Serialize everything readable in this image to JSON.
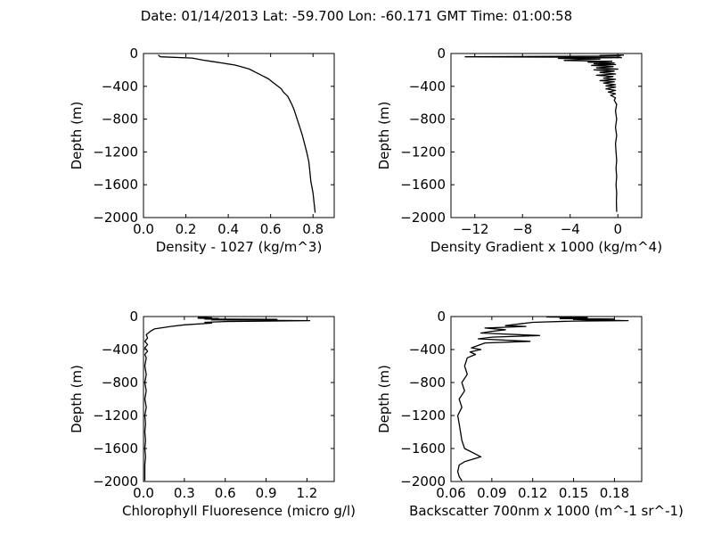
{
  "figure": {
    "title": "Date: 01/14/2013  Lat:  -59.700 Lon:  -60.171  GMT Time: 01:00:58"
  },
  "chart_data": [
    {
      "type": "line",
      "title": "",
      "xlabel": "Density - 1027 (kg/m^3)",
      "ylabel": "Depth (m)",
      "xlim": [
        0.0,
        0.9
      ],
      "ylim": [
        -2000,
        0
      ],
      "xticks": [
        0.0,
        0.2,
        0.4,
        0.6,
        0.8
      ],
      "xtick_labels": [
        "0.0",
        "0.2",
        "0.4",
        "0.6",
        "0.8"
      ],
      "yticks": [
        0,
        -400,
        -800,
        -1200,
        -1600,
        -2000
      ],
      "ytick_labels": [
        "0",
        "−400",
        "−800",
        "−1200",
        "−1600",
        "−2000"
      ],
      "grid": false,
      "series": [
        {
          "points": [
            [
              0.07,
              -20
            ],
            [
              0.08,
              -40
            ],
            [
              0.23,
              -55
            ],
            [
              0.28,
              -80
            ],
            [
              0.33,
              -100
            ],
            [
              0.38,
              -120
            ],
            [
              0.43,
              -140
            ],
            [
              0.46,
              -160
            ],
            [
              0.5,
              -190
            ],
            [
              0.53,
              -230
            ],
            [
              0.56,
              -270
            ],
            [
              0.59,
              -310
            ],
            [
              0.61,
              -350
            ],
            [
              0.63,
              -390
            ],
            [
              0.65,
              -430
            ],
            [
              0.66,
              -470
            ],
            [
              0.68,
              -520
            ],
            [
              0.69,
              -570
            ],
            [
              0.7,
              -620
            ],
            [
              0.71,
              -680
            ],
            [
              0.72,
              -760
            ],
            [
              0.73,
              -840
            ],
            [
              0.74,
              -920
            ],
            [
              0.75,
              -1000
            ],
            [
              0.76,
              -1100
            ],
            [
              0.77,
              -1200
            ],
            [
              0.78,
              -1320
            ],
            [
              0.785,
              -1440
            ],
            [
              0.79,
              -1560
            ],
            [
              0.8,
              -1700
            ],
            [
              0.805,
              -1820
            ],
            [
              0.81,
              -1940
            ]
          ]
        }
      ]
    },
    {
      "type": "line",
      "title": "",
      "xlabel": "Density Gradient x 1000 (kg/m^4)",
      "ylabel": "Depth (m)",
      "xlim": [
        -14,
        2
      ],
      "ylim": [
        -2000,
        0
      ],
      "xticks": [
        -12,
        -8,
        -4,
        0
      ],
      "xtick_labels": [
        "−12",
        "−8",
        "−4",
        "0"
      ],
      "yticks": [
        0,
        -400,
        -800,
        -1200,
        -1600,
        -2000
      ],
      "ytick_labels": [
        "0",
        "−400",
        "−800",
        "−1200",
        "−1600",
        "−2000"
      ],
      "grid": false,
      "series": [
        {
          "points": [
            [
              0.5,
              -20
            ],
            [
              -1.5,
              -25
            ],
            [
              0.2,
              -30
            ],
            [
              -12.8,
              -40
            ],
            [
              -3.5,
              -45
            ],
            [
              0.3,
              -50
            ],
            [
              -5,
              -60
            ],
            [
              -1.5,
              -70
            ],
            [
              -4.5,
              -85
            ],
            [
              -0.5,
              -95
            ],
            [
              -2.5,
              -105
            ],
            [
              -0.3,
              -115
            ],
            [
              -2,
              -125
            ],
            [
              -0.2,
              -135
            ],
            [
              -2.2,
              -145
            ],
            [
              -0.4,
              -160
            ],
            [
              -1.8,
              -175
            ],
            [
              0,
              -190
            ],
            [
              -2,
              -200
            ],
            [
              -0.3,
              -215
            ],
            [
              -1.5,
              -230
            ],
            [
              -0.2,
              -250
            ],
            [
              -1.8,
              -265
            ],
            [
              -0.4,
              -280
            ],
            [
              -1.2,
              -300
            ],
            [
              -0.2,
              -315
            ],
            [
              -1.5,
              -330
            ],
            [
              -0.3,
              -345
            ],
            [
              -1.2,
              -360
            ],
            [
              -0.2,
              -380
            ],
            [
              -1,
              -395
            ],
            [
              -0.2,
              -410
            ],
            [
              -1,
              -430
            ],
            [
              -0.2,
              -450
            ],
            [
              -0.8,
              -470
            ],
            [
              -0.2,
              -490
            ],
            [
              -0.6,
              -510
            ],
            [
              -0.2,
              -540
            ],
            [
              -0.3,
              -570
            ],
            [
              -0.1,
              -620
            ],
            [
              -0.2,
              -700
            ],
            [
              -0.1,
              -800
            ],
            [
              -0.2,
              -900
            ],
            [
              -0.1,
              -1000
            ],
            [
              -0.2,
              -1100
            ],
            [
              -0.15,
              -1200
            ],
            [
              -0.1,
              -1300
            ],
            [
              -0.15,
              -1400
            ],
            [
              -0.1,
              -1500
            ],
            [
              -0.15,
              -1600
            ],
            [
              -0.1,
              -1700
            ],
            [
              -0.12,
              -1800
            ],
            [
              -0.1,
              -1930
            ]
          ]
        }
      ]
    },
    {
      "type": "line",
      "title": "",
      "xlabel": "Chlorophyll Fluoresence (micro g/l)",
      "ylabel": "Depth (m)",
      "xlim": [
        0.0,
        1.4
      ],
      "ylim": [
        -2000,
        0
      ],
      "xticks": [
        0.0,
        0.3,
        0.6,
        0.9,
        1.2
      ],
      "xtick_labels": [
        "0.0",
        "0.3",
        "0.6",
        "0.9",
        "1.2"
      ],
      "yticks": [
        0,
        -400,
        -800,
        -1200,
        -1600,
        -2000
      ],
      "ytick_labels": [
        "0",
        "−400",
        "−800",
        "−1200",
        "−1600",
        "−2000"
      ],
      "grid": false,
      "series": [
        {
          "points": [
            [
              0.4,
              -10
            ],
            [
              0.5,
              -15
            ],
            [
              0.4,
              -20
            ],
            [
              0.55,
              -25
            ],
            [
              0.45,
              -30
            ],
            [
              0.98,
              -35
            ],
            [
              0.5,
              -40
            ],
            [
              1.22,
              -50
            ],
            [
              0.6,
              -60
            ],
            [
              0.45,
              -70
            ],
            [
              0.5,
              -80
            ],
            [
              0.3,
              -100
            ],
            [
              0.2,
              -120
            ],
            [
              0.08,
              -150
            ],
            [
              0.05,
              -180
            ],
            [
              0.02,
              -220
            ],
            [
              0.03,
              -260
            ],
            [
              0.01,
              -300
            ],
            [
              0.03,
              -340
            ],
            [
              0.01,
              -380
            ],
            [
              0.03,
              -420
            ],
            [
              0.01,
              -460
            ],
            [
              0.02,
              -500
            ],
            [
              0.01,
              -600
            ],
            [
              0.02,
              -700
            ],
            [
              0.01,
              -800
            ],
            [
              0.02,
              -900
            ],
            [
              0.01,
              -1000
            ],
            [
              0.02,
              -1100
            ],
            [
              0.01,
              -1200
            ],
            [
              0.015,
              -1300
            ],
            [
              0.01,
              -1400
            ],
            [
              0.015,
              -1500
            ],
            [
              0.01,
              -1600
            ],
            [
              0.015,
              -1700
            ],
            [
              0.01,
              -1800
            ],
            [
              0.01,
              -1900
            ],
            [
              0.01,
              -1990
            ]
          ]
        }
      ]
    },
    {
      "type": "line",
      "title": "",
      "xlabel": "Backscatter 700nm x 1000 (m^-1 sr^-1)",
      "ylabel": "Depth (m)",
      "xlim": [
        0.06,
        0.2
      ],
      "ylim": [
        -2000,
        0
      ],
      "xticks": [
        0.06,
        0.09,
        0.12,
        0.15,
        0.18
      ],
      "xtick_labels": [
        "0.06",
        "0.09",
        "0.12",
        "0.15",
        "0.18"
      ],
      "yticks": [
        0,
        -400,
        -800,
        -1200,
        -1600,
        -2000
      ],
      "ytick_labels": [
        "0",
        "−400",
        "−800",
        "−1200",
        "−1600",
        "−2000"
      ],
      "grid": false,
      "series": [
        {
          "points": [
            [
              0.13,
              -5
            ],
            [
              0.16,
              -10
            ],
            [
              0.14,
              -15
            ],
            [
              0.16,
              -20
            ],
            [
              0.14,
              -25
            ],
            [
              0.18,
              -30
            ],
            [
              0.15,
              -35
            ],
            [
              0.16,
              -40
            ],
            [
              0.19,
              -50
            ],
            [
              0.15,
              -55
            ],
            [
              0.12,
              -70
            ],
            [
              0.11,
              -90
            ],
            [
              0.1,
              -110
            ],
            [
              0.115,
              -120
            ],
            [
              0.085,
              -140
            ],
            [
              0.1,
              -160
            ],
            [
              0.09,
              -180
            ],
            [
              0.082,
              -200
            ],
            [
              0.125,
              -230
            ],
            [
              0.09,
              -250
            ],
            [
              0.08,
              -270
            ],
            [
              0.118,
              -300
            ],
            [
              0.085,
              -320
            ],
            [
              0.08,
              -350
            ],
            [
              0.075,
              -380
            ],
            [
              0.082,
              -400
            ],
            [
              0.074,
              -430
            ],
            [
              0.078,
              -460
            ],
            [
              0.072,
              -500
            ],
            [
              0.07,
              -600
            ],
            [
              0.072,
              -700
            ],
            [
              0.068,
              -800
            ],
            [
              0.07,
              -900
            ],
            [
              0.066,
              -1000
            ],
            [
              0.068,
              -1100
            ],
            [
              0.065,
              -1200
            ],
            [
              0.066,
              -1300
            ],
            [
              0.067,
              -1400
            ],
            [
              0.068,
              -1500
            ],
            [
              0.07,
              -1600
            ],
            [
              0.082,
              -1700
            ],
            [
              0.07,
              -1760
            ],
            [
              0.066,
              -1800
            ],
            [
              0.065,
              -1880
            ],
            [
              0.066,
              -1940
            ],
            [
              0.068,
              -1990
            ]
          ]
        }
      ]
    }
  ]
}
